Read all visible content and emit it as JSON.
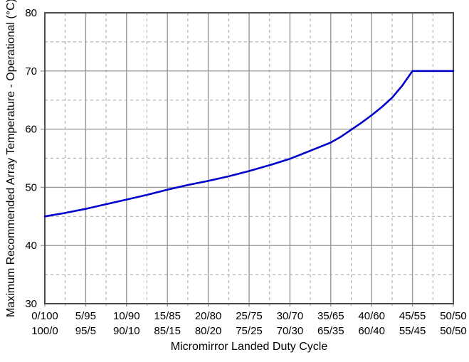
{
  "chart_data": {
    "type": "line",
    "title": "",
    "xlabel": "Micromirror Landed Duty Cycle",
    "ylabel": "Maximum Recommended Array Temperature - Operational (°C)",
    "xlim": [
      0,
      50
    ],
    "ylim": [
      30,
      80
    ],
    "x_major_tick_step": 5,
    "x_minor_tick_step": 2.5,
    "y_major_tick_step": 10,
    "y_minor_tick_step": 5,
    "grid": "major solid, minor dashed, full box border",
    "legend": "none",
    "y_tick_labels": [
      "30",
      "40",
      "50",
      "60",
      "70",
      "80"
    ],
    "y_tick_values": [
      30,
      40,
      50,
      60,
      70,
      80
    ],
    "x_tick_values": [
      0,
      5,
      10,
      15,
      20,
      25,
      30,
      35,
      40,
      45,
      50
    ],
    "x_tick_labels_top": [
      "0/100",
      "5/95",
      "10/90",
      "15/85",
      "20/80",
      "25/75",
      "30/70",
      "35/65",
      "40/60",
      "45/55",
      "50/50"
    ],
    "x_tick_labels_bottom": [
      "100/0",
      "95/5",
      "90/10",
      "85/15",
      "80/20",
      "75/25",
      "70/30",
      "65/35",
      "60/40",
      "55/45",
      "50/50"
    ],
    "series": [
      {
        "name": "Maximum recommended array temperature",
        "x": [
          0,
          5,
          10,
          15,
          20,
          25,
          30,
          35,
          40,
          45,
          50
        ],
        "y": [
          45.0,
          46.3,
          47.9,
          49.6,
          51.1,
          52.8,
          54.9,
          57.7,
          62.4,
          70.0,
          70.0
        ]
      }
    ],
    "curve_points": [
      [
        0,
        45.0
      ],
      [
        2.5,
        45.6
      ],
      [
        5,
        46.3
      ],
      [
        7.5,
        47.1
      ],
      [
        10,
        47.9
      ],
      [
        12.5,
        48.7
      ],
      [
        15,
        49.6
      ],
      [
        17.5,
        50.4
      ],
      [
        20,
        51.1
      ],
      [
        22.5,
        51.9
      ],
      [
        25,
        52.8
      ],
      [
        27.5,
        53.8
      ],
      [
        30,
        54.9
      ],
      [
        32.5,
        56.3
      ],
      [
        35,
        57.7
      ],
      [
        36.25,
        58.7
      ],
      [
        37.5,
        59.9
      ],
      [
        38.75,
        61.1
      ],
      [
        40,
        62.4
      ],
      [
        41.25,
        63.8
      ],
      [
        42.5,
        65.4
      ],
      [
        43.75,
        67.5
      ],
      [
        45,
        70.0
      ],
      [
        50,
        70.0
      ]
    ],
    "colors": {
      "line": "#0000cc",
      "grid_major": "#999999",
      "grid_minor": "#b3b3b3",
      "border": "#4d4d4d",
      "text": "#000000",
      "background": "#ffffff"
    }
  }
}
